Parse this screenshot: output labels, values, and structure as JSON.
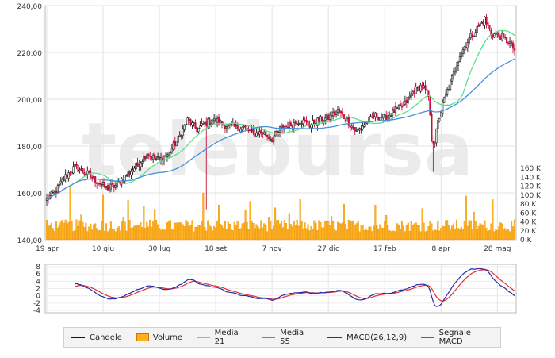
{
  "watermark": "telebursa",
  "chart_data": [
    {
      "type": "candlestick",
      "title": "",
      "ylim": [
        140,
        240
      ],
      "y_ticks": [
        "240,00",
        "220,00",
        "200,00",
        "180,00",
        "160,00",
        "140,00"
      ],
      "y_tick_values": [
        240,
        220,
        200,
        180,
        160,
        140
      ],
      "x_ticks": [
        "19 apr",
        "10 giu",
        "30 lug",
        "18 set",
        "7 nov",
        "27 dic",
        "17 feb",
        "8 apr",
        "28 mag"
      ],
      "x_tick_index": [
        0,
        36,
        72,
        108,
        144,
        180,
        216,
        252,
        288
      ],
      "n_bars": 300,
      "price_anchors": [
        [
          0,
          157
        ],
        [
          6,
          161
        ],
        [
          12,
          167
        ],
        [
          18,
          171
        ],
        [
          26,
          168
        ],
        [
          32,
          165
        ],
        [
          38,
          162
        ],
        [
          44,
          163
        ],
        [
          50,
          167
        ],
        [
          58,
          172
        ],
        [
          64,
          177
        ],
        [
          68,
          175
        ],
        [
          72,
          174
        ],
        [
          78,
          177
        ],
        [
          84,
          183
        ],
        [
          90,
          191
        ],
        [
          96,
          187
        ],
        [
          102,
          190
        ],
        [
          108,
          191
        ],
        [
          114,
          189
        ],
        [
          120,
          188
        ],
        [
          126,
          188
        ],
        [
          132,
          185
        ],
        [
          138,
          186
        ],
        [
          144,
          183
        ],
        [
          150,
          188
        ],
        [
          156,
          189
        ],
        [
          162,
          191
        ],
        [
          168,
          189
        ],
        [
          174,
          191
        ],
        [
          180,
          192
        ],
        [
          186,
          195
        ],
        [
          192,
          191
        ],
        [
          198,
          186
        ],
        [
          204,
          190
        ],
        [
          210,
          193
        ],
        [
          216,
          192
        ],
        [
          222,
          195
        ],
        [
          228,
          197
        ],
        [
          234,
          203
        ],
        [
          240,
          206
        ],
        [
          244,
          201
        ],
        [
          246,
          183
        ],
        [
          248,
          182
        ],
        [
          250,
          190
        ],
        [
          254,
          200
        ],
        [
          258,
          207
        ],
        [
          264,
          219
        ],
        [
          270,
          226
        ],
        [
          276,
          231
        ],
        [
          280,
          234
        ],
        [
          284,
          228
        ],
        [
          290,
          227
        ],
        [
          296,
          224
        ],
        [
          300,
          220
        ],
        [
          304,
          214
        ],
        [
          310,
          218
        ],
        [
          316,
          215
        ]
      ],
      "spikes": [
        [
          102,
          153
        ],
        [
          247,
          169
        ]
      ],
      "moving_averages": [
        {
          "name": "Media 21",
          "period": 21,
          "color": "#5ee08a"
        },
        {
          "name": "Media 55",
          "period": 55,
          "color": "#4a90d9"
        }
      ]
    },
    {
      "type": "bar",
      "series_name": "Volume",
      "ylim": [
        0,
        160000
      ],
      "y_ticks": [
        "160 K",
        "140 K",
        "120 K",
        "100 K",
        "80 K",
        "60 K",
        "40 K",
        "20 K",
        "0 K"
      ],
      "y_tick_values": [
        160000,
        140000,
        120000,
        100000,
        80000,
        60000,
        40000,
        20000,
        0
      ],
      "base_volume": [
        18000,
        45000
      ],
      "peaks": [
        [
          15,
          120000
        ],
        [
          36,
          100000
        ],
        [
          52,
          88000
        ],
        [
          62,
          76000
        ],
        [
          100,
          105000
        ],
        [
          110,
          78000
        ],
        [
          130,
          86000
        ],
        [
          162,
          90000
        ],
        [
          190,
          80000
        ],
        [
          210,
          78000
        ],
        [
          240,
          70000
        ],
        [
          268,
          98000
        ],
        [
          285,
          90000
        ],
        [
          300,
          95000
        ],
        [
          308,
          140000
        ]
      ]
    },
    {
      "type": "line",
      "ylim": [
        -4,
        8
      ],
      "y_ticks": [
        "8",
        "6",
        "4",
        "2",
        "0",
        "-2",
        "-4"
      ],
      "y_tick_values": [
        8,
        6,
        4,
        2,
        0,
        -2,
        -4
      ],
      "series": [
        {
          "name": "MACD(26,12,9)",
          "color": "#2a2aa8"
        },
        {
          "name": "Segnale MACD",
          "color": "#e03030"
        }
      ]
    }
  ],
  "legend": [
    {
      "label": "Candele",
      "kind": "line",
      "color": "#111111"
    },
    {
      "label": "Volume",
      "kind": "box",
      "color": "#ffb01f"
    },
    {
      "label": "Media 21",
      "kind": "line",
      "color": "#5ee08a"
    },
    {
      "label": "Media 55",
      "kind": "line",
      "color": "#4a90d9"
    },
    {
      "label": "MACD(26,12,9)",
      "kind": "line",
      "color": "#2a2aa8"
    },
    {
      "label": "Segnale MACD",
      "kind": "line",
      "color": "#e03030"
    }
  ]
}
